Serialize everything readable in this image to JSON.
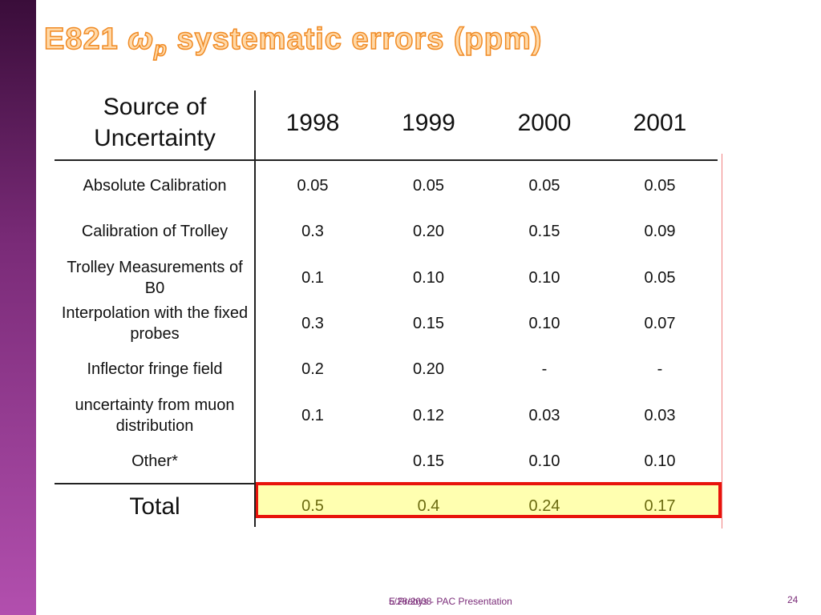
{
  "title": {
    "prefix": "E821 ",
    "symbol": "ω",
    "subscript": "p",
    "suffix": " systematic errors (ppm)"
  },
  "table": {
    "header": [
      "Source of Uncertainty",
      "1998",
      "1999",
      "2000",
      "2001"
    ],
    "rows": [
      [
        "Absolute Calibration",
        "0.05",
        "0.05",
        "0.05",
        "0.05"
      ],
      [
        "Calibration of Trolley",
        "0.3",
        "0.20",
        "0.15",
        "0.09"
      ],
      [
        "Trolley Measurements of B0",
        "0.1",
        "0.10",
        "0.10",
        "0.05"
      ],
      [
        "Interpolation with the fixed probes",
        "0.3",
        "0.15",
        "0.10",
        "0.07"
      ],
      [
        "Inflector fringe field",
        "0.2",
        "0.20",
        "-",
        "-"
      ],
      [
        "uncertainty from muon distribution",
        "0.1",
        "0.12",
        "0.03",
        "0.03"
      ],
      [
        "Other*",
        null,
        "0.15",
        "0.10",
        "0.10"
      ]
    ],
    "total": [
      "Total",
      "0.5",
      "0.4",
      "0.24",
      "0.17"
    ]
  },
  "footer": {
    "date": "5/28/2008",
    "presenter": "E.Prebys - PAC Presentation",
    "page": "24"
  }
}
